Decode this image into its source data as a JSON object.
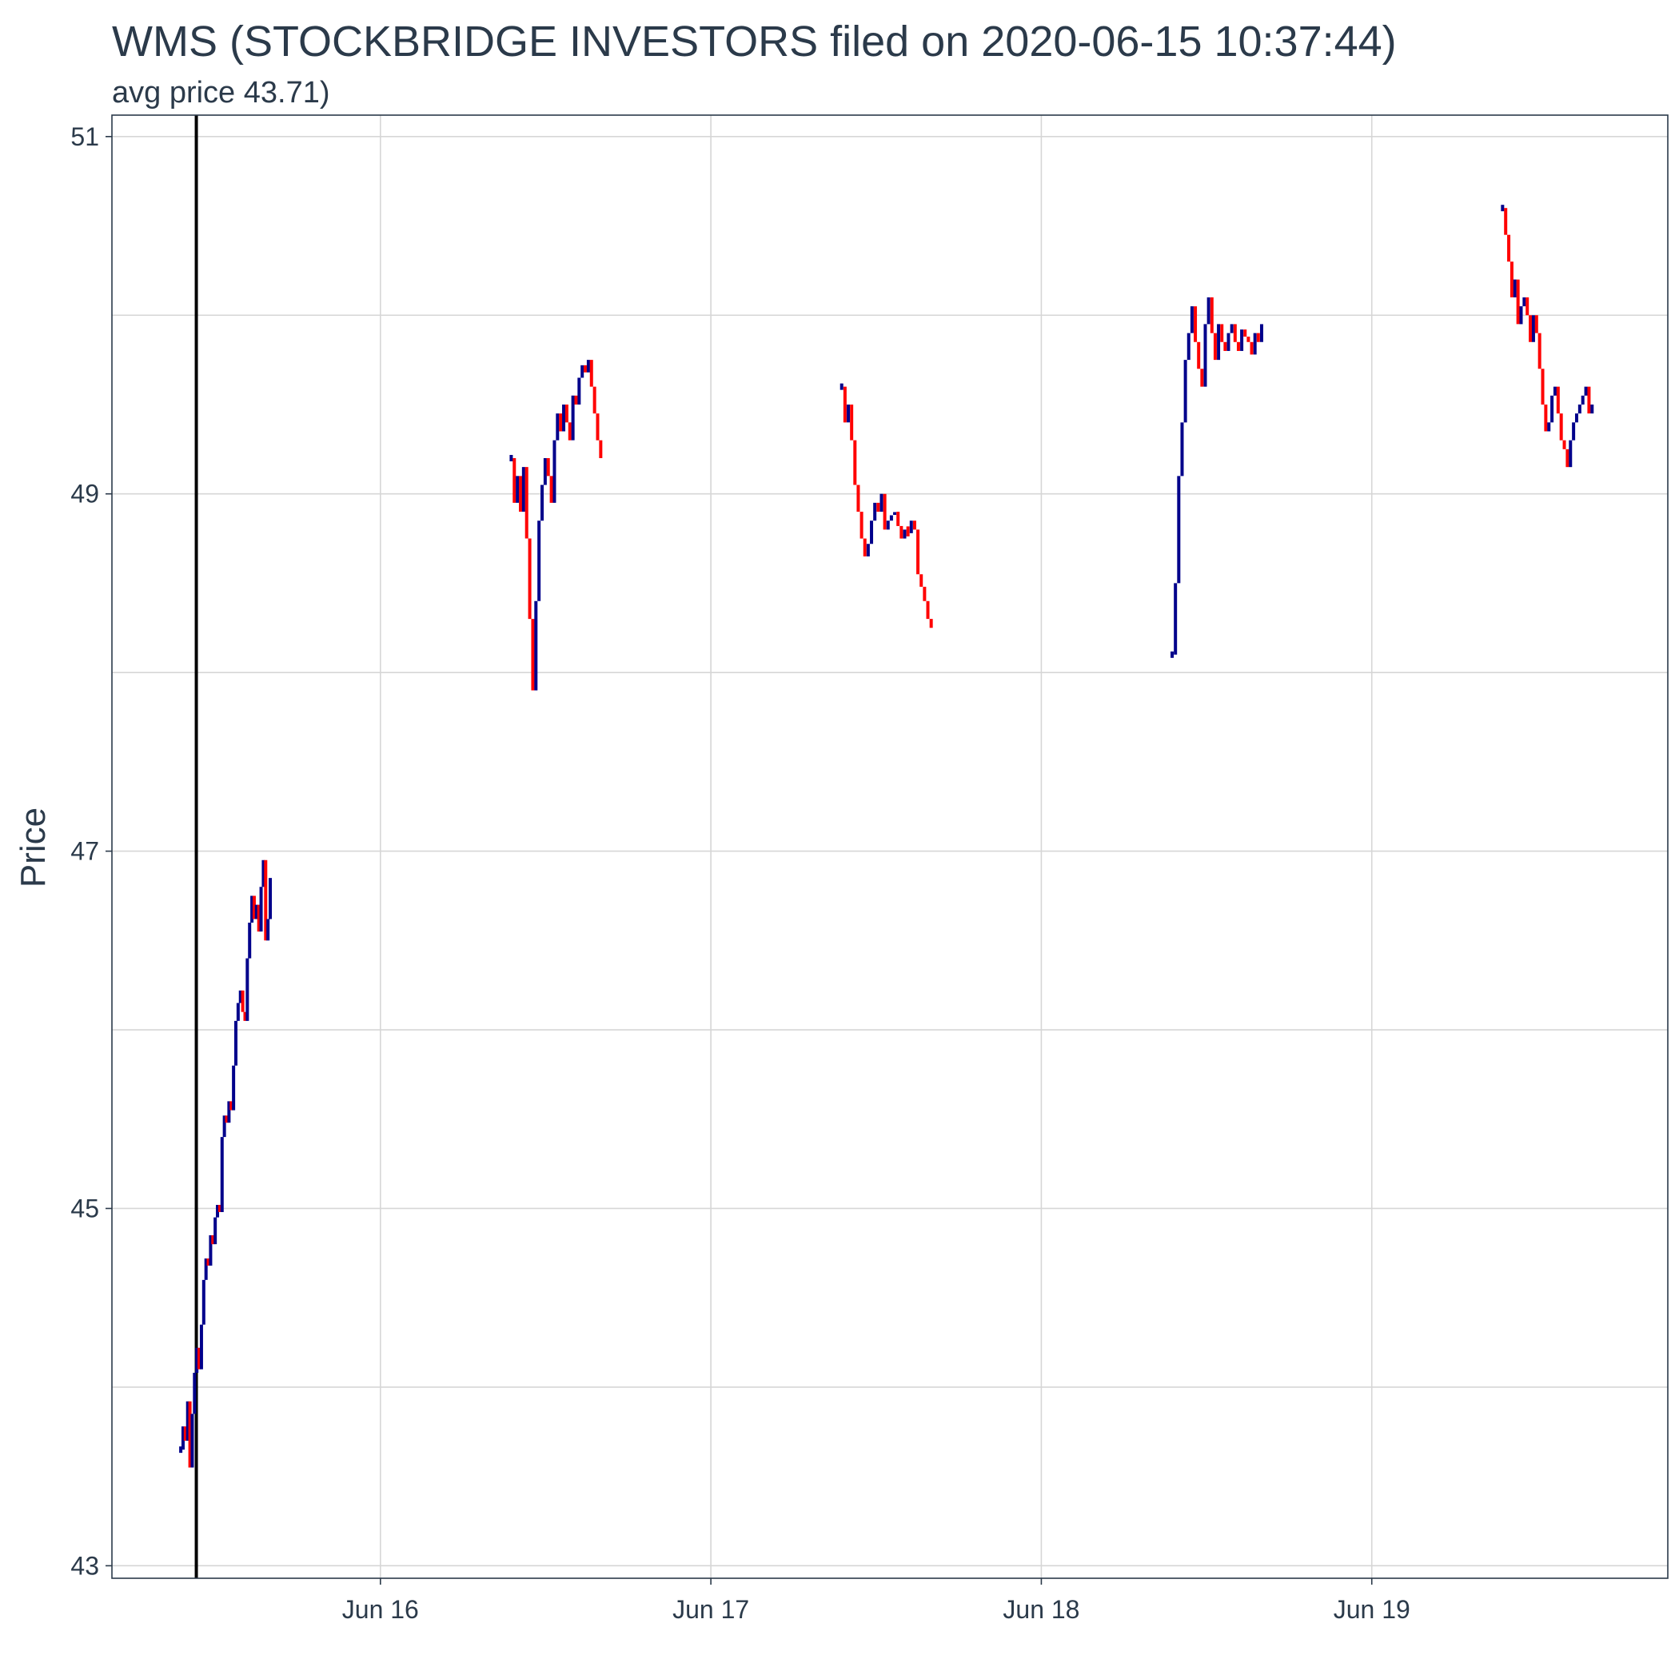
{
  "title": "WMS (STOCKBRIDGE INVESTORS filed on 2020-06-15 10:37:44)",
  "subtitle": "avg price 43.71)",
  "colors": {
    "up": "#00008b",
    "down": "#ff0000",
    "filing_line": "#000000",
    "text": "#2b3a4a",
    "grid": "#d6d6d6"
  },
  "chart_data": {
    "type": "candlestick",
    "title": "WMS (STOCKBRIDGE INVESTORS filed on 2020-06-15 10:37:44)",
    "subtitle": "avg price 43.71)",
    "xlabel": "",
    "ylabel": "Price",
    "x_ticks": [
      "Jun 16",
      "Jun 17",
      "Jun 18",
      "Jun 19"
    ],
    "x_tick_values": [
      "2020-06-16",
      "2020-06-17",
      "2020-06-18",
      "2020-06-19"
    ],
    "xlim": [
      "2020-06-15 04:30",
      "2020-06-19 21:30"
    ],
    "y_ticks": [
      "43",
      "45",
      "47",
      "49",
      "51"
    ],
    "y_tick_values": [
      43,
      45,
      47,
      49,
      51
    ],
    "ylim": [
      42.93,
      51.12
    ],
    "grid": true,
    "filing_marker": "2020-06-15 10:37:44",
    "series": [
      {
        "segment": "2020-06-15",
        "start": "2020-06-15 09:30",
        "end": "2020-06-15 16:00",
        "close": [
          43.65,
          43.78,
          43.7,
          43.92,
          43.55,
          43.85,
          44.08,
          44.22,
          44.1,
          44.35,
          44.6,
          44.72,
          44.68,
          44.85,
          44.8,
          44.95,
          45.02,
          44.98,
          45.4,
          45.52,
          45.48,
          45.6,
          45.55,
          45.8,
          46.05,
          46.15,
          46.22,
          46.1,
          46.05,
          46.4,
          46.6,
          46.75,
          46.62,
          46.7,
          46.55,
          46.8,
          46.95,
          46.5,
          46.62,
          46.85
        ]
      },
      {
        "segment": "2020-06-16",
        "start": "2020-06-16 09:30",
        "end": "2020-06-16 16:00",
        "close": [
          49.2,
          48.95,
          49.1,
          48.9,
          49.15,
          48.75,
          48.3,
          47.9,
          48.4,
          48.85,
          49.05,
          49.2,
          49.1,
          48.95,
          49.3,
          49.45,
          49.35,
          49.5,
          49.4,
          49.3,
          49.55,
          49.5,
          49.65,
          49.72,
          49.68,
          49.75,
          49.6,
          49.45,
          49.3,
          49.2
        ]
      },
      {
        "segment": "2020-06-17",
        "start": "2020-06-17 09:30",
        "end": "2020-06-17 16:00",
        "close": [
          49.6,
          49.4,
          49.5,
          49.3,
          49.05,
          48.9,
          48.75,
          48.65,
          48.72,
          48.85,
          48.95,
          48.9,
          49.0,
          48.8,
          48.85,
          48.88,
          48.9,
          48.82,
          48.75,
          48.8,
          48.78,
          48.85,
          48.8,
          48.55,
          48.48,
          48.4,
          48.3,
          48.25
        ]
      },
      {
        "segment": "2020-06-18",
        "start": "2020-06-18 09:30",
        "end": "2020-06-18 16:00",
        "close": [
          48.1,
          48.5,
          49.1,
          49.4,
          49.75,
          49.9,
          50.05,
          49.85,
          49.7,
          49.6,
          49.95,
          50.1,
          49.9,
          49.75,
          49.95,
          49.85,
          49.8,
          49.9,
          49.95,
          49.85,
          49.8,
          49.92,
          49.88,
          49.85,
          49.78,
          49.9,
          49.85,
          49.95
        ]
      },
      {
        "segment": "2020-06-19",
        "start": "2020-06-19 09:30",
        "end": "2020-06-19 16:00",
        "close": [
          50.6,
          50.45,
          50.3,
          50.1,
          50.2,
          49.95,
          50.05,
          50.1,
          50.0,
          49.85,
          50.0,
          49.9,
          49.7,
          49.5,
          49.35,
          49.4,
          49.55,
          49.6,
          49.45,
          49.3,
          49.25,
          49.15,
          49.3,
          49.4,
          49.45,
          49.5,
          49.55,
          49.6,
          49.45,
          49.5
        ]
      }
    ]
  }
}
